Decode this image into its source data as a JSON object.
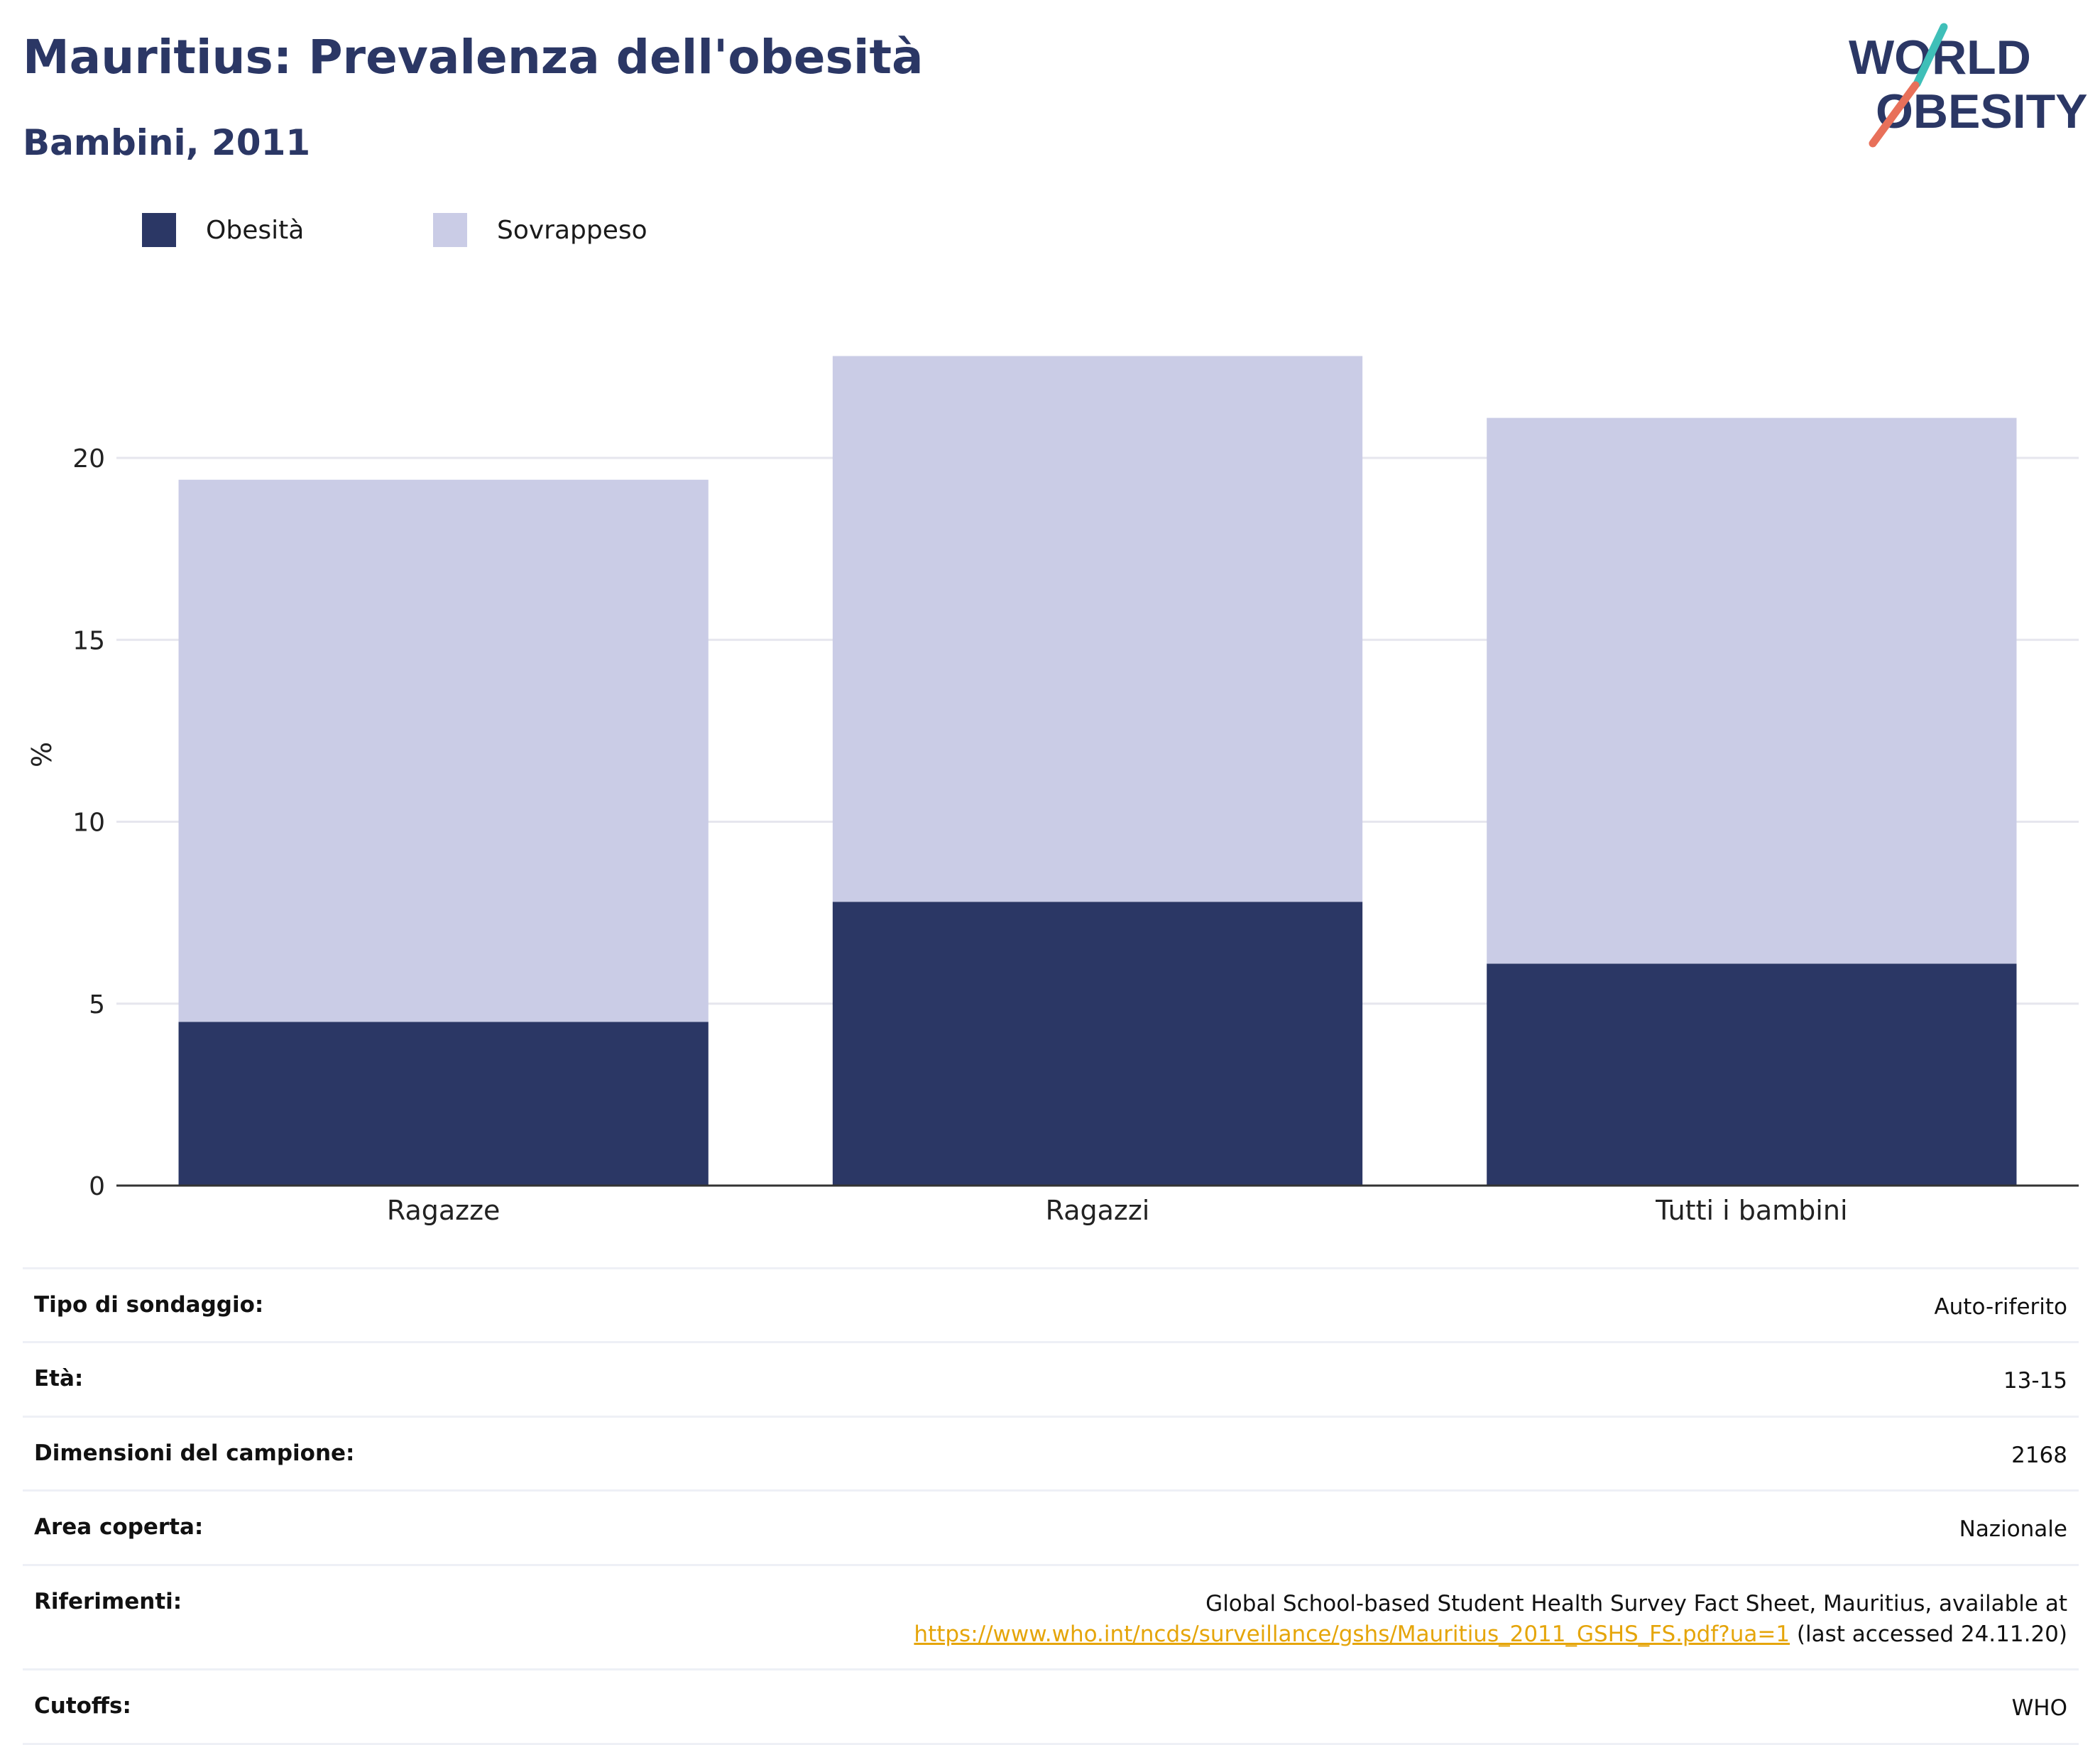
{
  "header": {
    "title": "Mauritius: Prevalenza dell'obesità",
    "subtitle": "Bambini, 2011",
    "logo_text": [
      "WORLD",
      "OBESITY"
    ]
  },
  "colors": {
    "title": "#2b3765",
    "obesity": "#2b3765",
    "overweight": "#cacce6",
    "link": "#e5a50a",
    "logo_teal": "#3fbfb8",
    "logo_coral": "#e8705a"
  },
  "legend": [
    {
      "label": "Obesità"
    },
    {
      "label": "Sovrappeso"
    }
  ],
  "chart_data": {
    "type": "bar",
    "stacked": true,
    "categories": [
      "Ragazze",
      "Ragazzi",
      "Tutti i bambini"
    ],
    "series": [
      {
        "name": "Obesità",
        "values": [
          4.5,
          7.8,
          6.1
        ]
      },
      {
        "name": "Sovrappeso",
        "values": [
          14.9,
          15.0,
          15.0
        ]
      }
    ],
    "totals": [
      19.4,
      22.8,
      21.1
    ],
    "ylabel": "%",
    "yticks": [
      0,
      5,
      10,
      15,
      20
    ],
    "ylim": [
      0,
      24
    ],
    "grid": true,
    "legend_position": "top-left"
  },
  "info": {
    "rows": [
      {
        "label": "Tipo di sondaggio:",
        "value": "Auto-riferito"
      },
      {
        "label": "Età:",
        "value": "13-15"
      },
      {
        "label": "Dimensioni del campione:",
        "value": "2168"
      },
      {
        "label": "Area coperta:",
        "value": "Nazionale"
      },
      {
        "label": "Riferimenti:",
        "value": "Global School-based Student Health Survey Fact Sheet, Mauritius, available at",
        "link": "https://www.who.int/ncds/surveillance/gshs/Mauritius_2011_GSHS_FS.pdf?ua=1",
        "suffix": " (last accessed 24.11.20)"
      },
      {
        "label": "Cutoffs:",
        "value": "WHO"
      }
    ]
  }
}
